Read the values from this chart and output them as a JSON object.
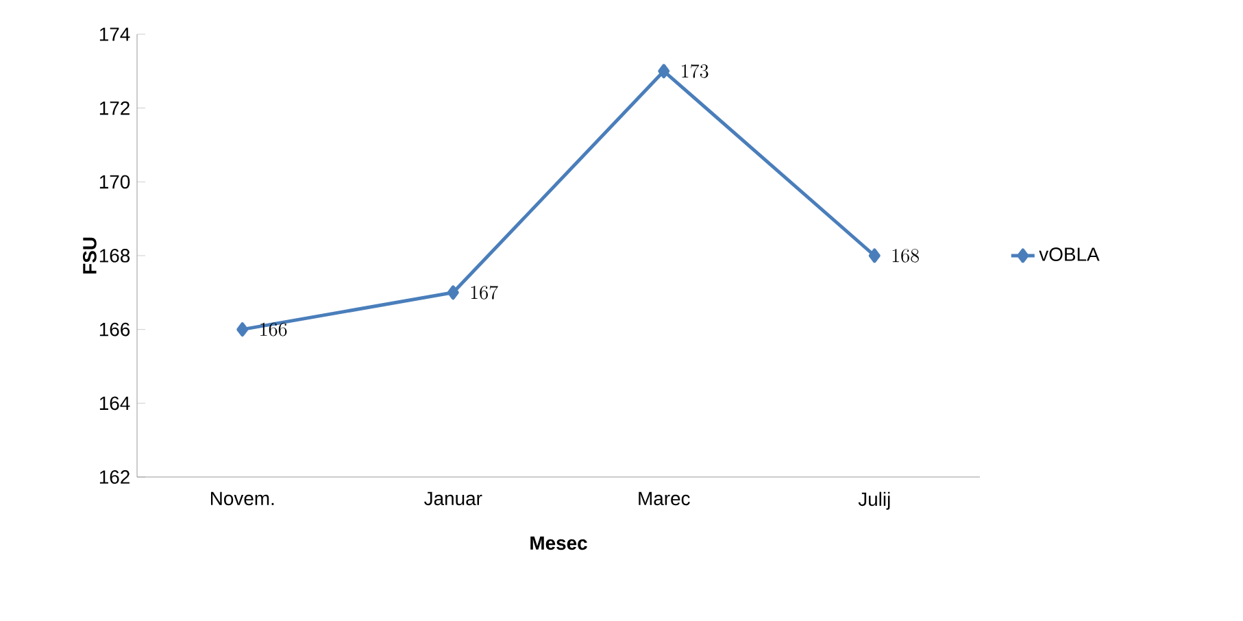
{
  "chart_data": {
    "type": "line",
    "xlabel": "Mesec",
    "ylabel": "FSU",
    "categories": [
      "Novem.",
      "Januar",
      "Marec",
      "Julij"
    ],
    "series": [
      {
        "name": "vOBLA",
        "color": "#4a7ebb",
        "values": [
          166,
          167,
          173,
          168
        ]
      }
    ],
    "ylim": [
      162,
      174
    ],
    "yticks": [
      162,
      164,
      166,
      168,
      170,
      172,
      174
    ],
    "marker": "diamond",
    "legend": "right",
    "data_labels": true,
    "grid": false
  }
}
